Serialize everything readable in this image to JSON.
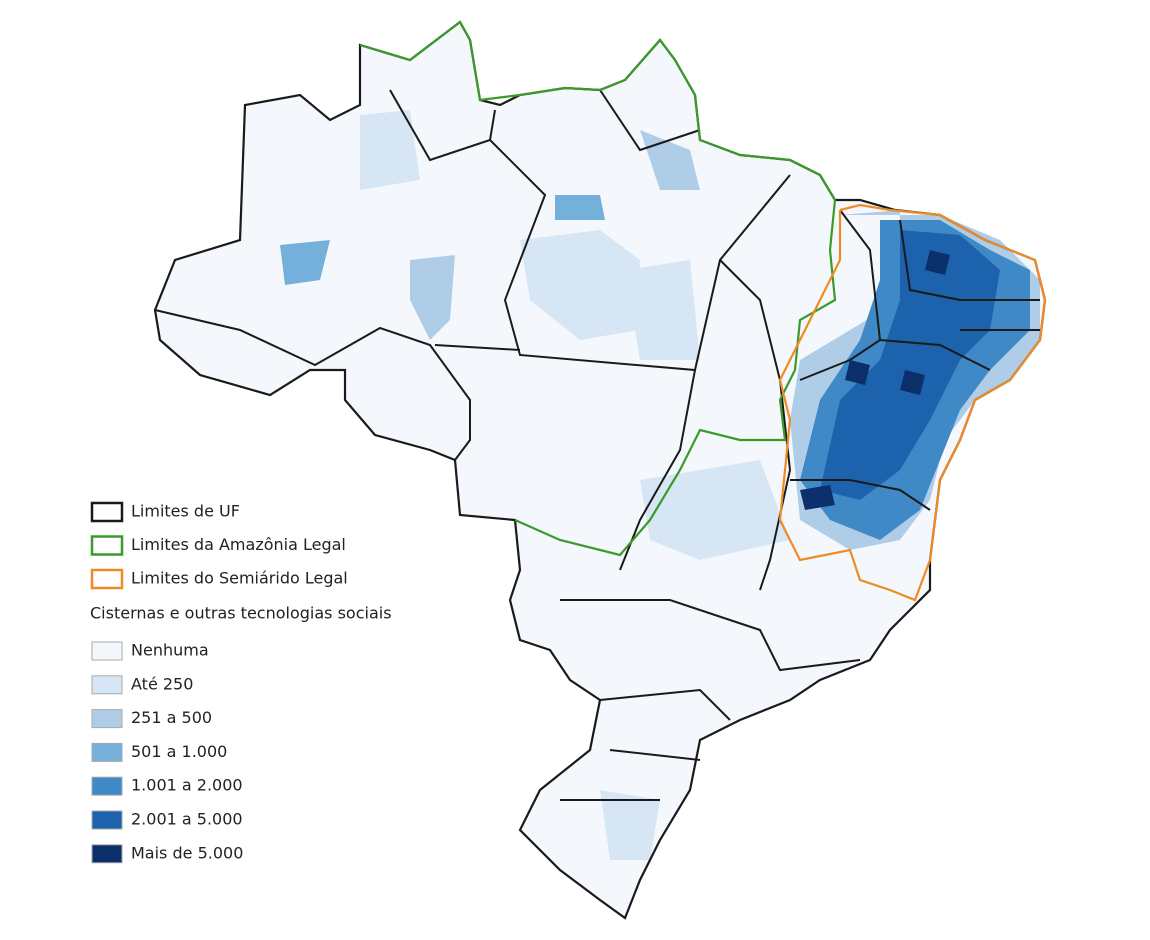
{
  "legend": {
    "boundaries": [
      {
        "label": "Limites de UF",
        "color": "#1a1a1a"
      },
      {
        "label": "Limites da Amazônia Legal",
        "color": "#3a9a2a"
      },
      {
        "label": "Limites do Semiárido Legal",
        "color": "#f08a24"
      }
    ],
    "title": "Cisternas e outras tecnologias sociais",
    "classes": [
      {
        "label": "Nenhuma",
        "color": "#f4f8fd"
      },
      {
        "label": "Até 250",
        "color": "#d6e6f5"
      },
      {
        "label": "251 a 500",
        "color": "#b0cde8"
      },
      {
        "label": "501 a 1.000",
        "color": "#75b0db"
      },
      {
        "label": "1.001 a 2.000",
        "color": "#3f8ac6"
      },
      {
        "label": "2.001 a 5.000",
        "color": "#1d62ad"
      },
      {
        "label": "Mais de 5.000",
        "color": "#0b2f6b"
      }
    ]
  }
}
